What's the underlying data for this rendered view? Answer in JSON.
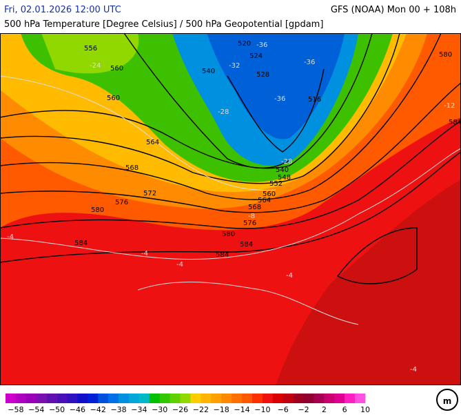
{
  "header": {
    "date": "Fri, 02.01.2026 12:00 UTC",
    "model": "GFS (NOAA) Mon 00 + 108h",
    "subtitle": "500 hPa Temperature [Degree Celsius] / 500 hPa Geopotential [gpdam]"
  },
  "map": {
    "contour_labels": [
      "556",
      "560",
      "560",
      "564",
      "568",
      "572",
      "576",
      "580",
      "584",
      "584",
      "520",
      "524",
      "540",
      "528",
      "516",
      "540",
      "548",
      "552",
      "560",
      "564",
      "568",
      "576",
      "580",
      "584",
      "580",
      "584"
    ],
    "temperature_labels": [
      "-24",
      "-32",
      "-36",
      "-36",
      "-28",
      "-36",
      "-28",
      "-12",
      "-8",
      "-4",
      "-4",
      "-4",
      "-4",
      "-4"
    ]
  },
  "colorbar": {
    "labels": [
      "−58",
      "−54",
      "−50",
      "−46",
      "−42",
      "−38",
      "−34",
      "−30",
      "−26",
      "−22",
      "−18",
      "−14",
      "−10",
      "−6",
      "−2",
      "2",
      "6",
      "10"
    ],
    "colors": [
      "#cc00cc",
      "#b000c0",
      "#9a00b8",
      "#7a10b0",
      "#6010b0",
      "#4a10b8",
      "#3010c0",
      "#1010c8",
      "#0020d8",
      "#0050e0",
      "#0070e8",
      "#0090e0",
      "#00a8d8",
      "#00b8c8",
      "#00c000",
      "#30c800",
      "#60d000",
      "#90d800",
      "#ffcc00",
      "#ffb400",
      "#ffa000",
      "#ff8800",
      "#ff7000",
      "#ff5800",
      "#ff3000",
      "#f01010",
      "#d80000",
      "#c00010",
      "#a00020",
      "#900030",
      "#a80050",
      "#c80070",
      "#e00090",
      "#ff20c0",
      "#ff50e0"
    ]
  }
}
